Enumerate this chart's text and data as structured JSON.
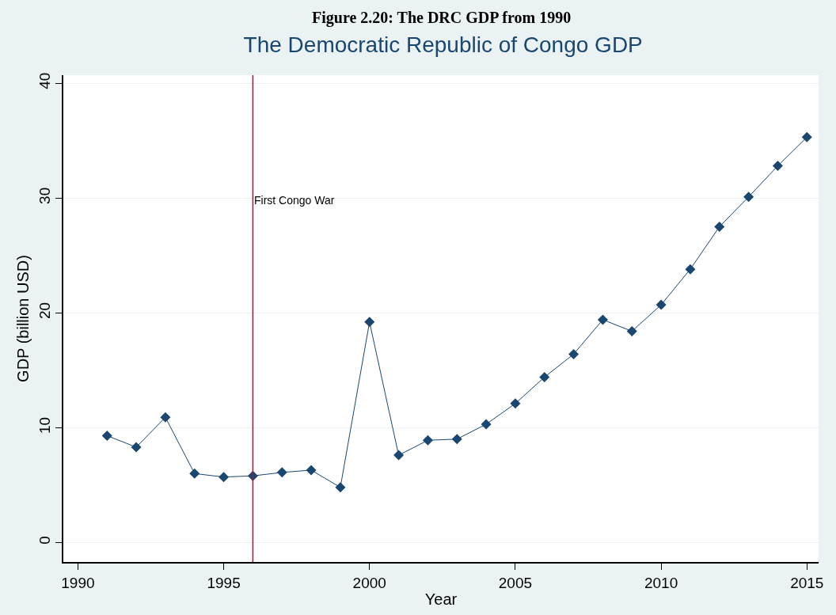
{
  "chart_data": {
    "type": "line",
    "title": "The Democratic Republic of Congo GDP",
    "xlabel": "Year",
    "ylabel": "GDP (billion USD)",
    "annotations": [
      "Figure 2.20: The DRC GDP from 1990"
    ],
    "x": [
      1991,
      1992,
      1993,
      1994,
      1995,
      1996,
      1997,
      1998,
      1999,
      2000,
      2001,
      2002,
      2003,
      2004,
      2005,
      2006,
      2007,
      2008,
      2009,
      2010,
      2011,
      2012,
      2013,
      2014,
      2015
    ],
    "series": [
      {
        "color": "#1a476f",
        "values": [
          9.3,
          8.3,
          10.9,
          6.0,
          5.7,
          5.8,
          6.1,
          6.3,
          4.8,
          19.2,
          7.6,
          8.9,
          9.0,
          10.3,
          12.1,
          14.4,
          16.4,
          19.4,
          18.4,
          20.7,
          23.8,
          27.5,
          30.1,
          32.8,
          35.3
        ]
      }
    ],
    "xlim": [
      1989.5,
      2015.4
    ],
    "xticks": [
      1990,
      1995,
      2000,
      2005,
      2010,
      2015
    ],
    "ylim": [
      -1.7,
      40.7
    ],
    "yticks": [
      0,
      10,
      20,
      30,
      40
    ],
    "ref_lines": [
      {
        "axis": "x",
        "value": 1996,
        "label": "First Congo War",
        "color": "#c10534"
      }
    ],
    "grid": "y",
    "marker": "diamond",
    "line_style": "solid"
  }
}
